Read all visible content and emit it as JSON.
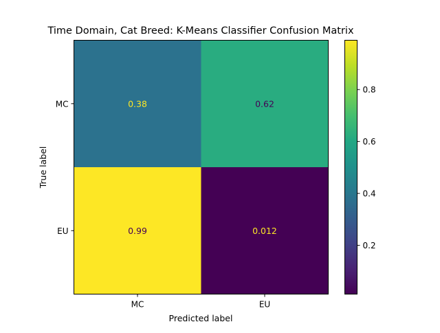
{
  "chart_data": {
    "type": "heatmap",
    "title": "Time Domain, Cat Breed: K-Means Classifier Confusion Matrix",
    "xlabel": "Predicted label",
    "ylabel": "True label",
    "x_categories": [
      "MC",
      "EU"
    ],
    "y_categories": [
      "MC",
      "EU"
    ],
    "values": [
      [
        0.38,
        0.62
      ],
      [
        0.99,
        0.012
      ]
    ],
    "cell_labels": [
      [
        "0.38",
        "0.62"
      ],
      [
        "0.99",
        "0.012"
      ]
    ],
    "colormap": "viridis",
    "color_range": [
      0.012,
      0.99
    ],
    "colorbar_ticks": [
      0.2,
      0.4,
      0.6,
      0.8
    ],
    "colorbar_tick_labels": [
      "0.2",
      "0.4",
      "0.6",
      "0.8"
    ],
    "grid": false
  }
}
